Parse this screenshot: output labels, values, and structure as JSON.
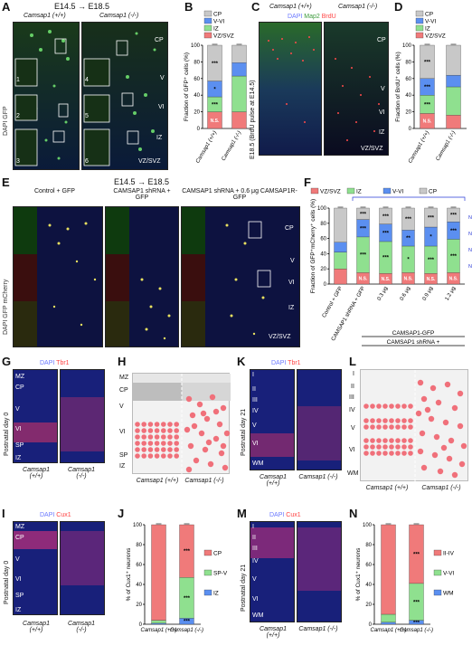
{
  "panels": {
    "A": {
      "label": "A",
      "timeline": "E14.5 → E18.5",
      "genotypes": [
        "Camsap1 (+/+)",
        "Camsap1 (-/-)"
      ],
      "stain": "DAPI GFP",
      "layers": [
        "CP",
        "V",
        "VI",
        "IZ",
        "VZ/SVZ"
      ],
      "insets": [
        "1",
        "2",
        "3",
        "4",
        "5",
        "6"
      ]
    },
    "B": {
      "label": "B"
    },
    "C": {
      "label": "C",
      "genotypes": [
        "Camsap1 (+/+)",
        "Camsap1 (-/-)"
      ],
      "stain_dapi": "DAPI",
      "stain_map2": "Map2",
      "stain_brdu": "BrdU",
      "side": "E18.5 (BrdU pulse at E14.5)",
      "layers": [
        "CP",
        "V",
        "VI",
        "IZ",
        "VZ/SVZ"
      ]
    },
    "D": {
      "label": "D"
    },
    "E": {
      "label": "E",
      "timeline": "E14.5 → E18.5",
      "groups": [
        "Control + GFP",
        "CAMSAP1 shRNA + GFP",
        "CAMSAP1 shRNA + 0.6 μg CAMSAP1R-GFP"
      ],
      "stain": "DAPI GFP mCherry",
      "layers": [
        "CP",
        "V",
        "VI",
        "IZ",
        "VZ/SVZ"
      ]
    },
    "F": {
      "label": "F",
      "rescue_bracket": "CAMSAP1-GFP",
      "shrna_bracket": "CAMSAP1 shRNA +"
    },
    "G": {
      "label": "G",
      "side": "Postnatal day 0",
      "stain_dapi": "DAPI",
      "stain_marker": "Tbr1",
      "layers": [
        "MZ",
        "CP",
        "V",
        "VI",
        "SP",
        "IZ"
      ],
      "genotypes": [
        "Camsap1 (+/+)",
        "Camsap1 (-/-)"
      ]
    },
    "H": {
      "label": "H",
      "layers": [
        "MZ",
        "CP",
        "V",
        "VI",
        "SP",
        "IZ"
      ],
      "genotypes": [
        "Camsap1 (+/+)",
        "Camsap1 (-/-)"
      ]
    },
    "I": {
      "label": "I",
      "side": "Postnatal day 0",
      "stain_dapi": "DAPI",
      "stain_marker": "Cux1",
      "layers": [
        "MZ",
        "CP",
        "V",
        "VI",
        "SP",
        "IZ"
      ],
      "genotypes": [
        "Camsap1 (+/+)",
        "Camsap1 (-/-)"
      ]
    },
    "J": {
      "label": "J"
    },
    "K": {
      "label": "K",
      "side": "Postnatal day 21",
      "stain_dapi": "DAPI",
      "stain_marker": "Tbr1",
      "layers": [
        "I",
        "II",
        "III",
        "IV",
        "V",
        "VI",
        "WM"
      ],
      "genotypes": [
        "Camsap1 (+/+)",
        "Camsap1 (-/-)"
      ]
    },
    "L": {
      "label": "L",
      "layers": [
        "I",
        "II",
        "III",
        "IV",
        "V",
        "VI",
        "WM"
      ],
      "genotypes": [
        "Camsap1 (+/+)",
        "Camsap1 (-/-)"
      ]
    },
    "M": {
      "label": "M",
      "side": "Postnatal day 21",
      "stain_dapi": "DAPI",
      "stain_marker": "Cux1",
      "layers": [
        "I",
        "II",
        "III",
        "IV",
        "V",
        "VI",
        "WM"
      ],
      "genotypes": [
        "Camsap1 (+/+)",
        "Camsap1 (-/-)"
      ]
    },
    "N": {
      "label": "N"
    }
  },
  "colors": {
    "cp": "#c8c8c8",
    "v_vi": "#5b8ff0",
    "iz": "#8fe08f",
    "vz": "#f07a7a",
    "cell": "#f0707a",
    "dapi": "#1a1f8f",
    "sig_blue": "#2a3bd6"
  },
  "chart_data": [
    {
      "id": "B",
      "type": "bar",
      "stacked": true,
      "ylabel": "Fraction of GFP⁺ cells (%)",
      "ylim": [
        0,
        100
      ],
      "yticks": [
        0,
        20,
        40,
        60,
        80,
        100
      ],
      "categories": [
        "Camsap1 (+/+)",
        "Camsap1 (-/-)"
      ],
      "series": [
        {
          "name": "VZ/SVZ",
          "color": "#f07a7a",
          "values": [
            20,
            20
          ]
        },
        {
          "name": "IZ",
          "color": "#8fe08f",
          "values": [
            18,
            43
          ]
        },
        {
          "name": "V-VI",
          "color": "#5b8ff0",
          "values": [
            19,
            16
          ]
        },
        {
          "name": "CP",
          "color": "#c8c8c8",
          "values": [
            43,
            21
          ]
        }
      ],
      "annotations": [
        [
          "***",
          "*",
          "***",
          "N.S."
        ]
      ]
    },
    {
      "id": "D",
      "type": "bar",
      "stacked": true,
      "ylabel": "Fraction of BrdU⁺ cells (%)",
      "ylim": [
        0,
        100
      ],
      "yticks": [
        0,
        20,
        40,
        60,
        80,
        100
      ],
      "categories": [
        "Camsap1 (+/+)",
        "Camsap1 (-/-)"
      ],
      "series": [
        {
          "name": "VZ/SVZ",
          "color": "#f07a7a",
          "values": [
            18,
            16
          ]
        },
        {
          "name": "IZ",
          "color": "#8fe08f",
          "values": [
            22,
            34
          ]
        },
        {
          "name": "V-VI",
          "color": "#5b8ff0",
          "values": [
            20,
            14
          ]
        },
        {
          "name": "CP",
          "color": "#c8c8c8",
          "values": [
            40,
            36
          ]
        }
      ],
      "annotations": [
        [
          "***",
          "***",
          "***",
          "N.S."
        ]
      ]
    },
    {
      "id": "F",
      "type": "bar",
      "stacked": true,
      "ylabel": "Fraction of GFP⁺mCherry⁺ cells (%)",
      "ylim": [
        0,
        100
      ],
      "yticks": [
        0,
        20,
        40,
        60,
        80,
        100
      ],
      "categories": [
        "Control + GFP",
        "CAMSAP1 shRNA + GFP",
        "0.3 μg",
        "0.6 μg",
        "0.9 μg",
        "1.2 μg"
      ],
      "series": [
        {
          "name": "VZ/SVZ",
          "color": "#f07a7a",
          "values": [
            20,
            15,
            14,
            15,
            14,
            15
          ]
        },
        {
          "name": "IZ",
          "color": "#8fe08f",
          "values": [
            22,
            47,
            42,
            35,
            36,
            44
          ]
        },
        {
          "name": "V-VI",
          "color": "#5b8ff0",
          "values": [
            13,
            23,
            23,
            21,
            25,
            23
          ]
        },
        {
          "name": "CP",
          "color": "#c8c8c8",
          "values": [
            45,
            15,
            21,
            29,
            25,
            18
          ]
        }
      ],
      "legend": [
        "VZ/SVZ",
        "IZ",
        "V-VI",
        "CP"
      ],
      "annotations": [
        [],
        [
          "***",
          "***",
          "***",
          "N.S."
        ],
        [
          "***",
          "***",
          "***",
          "N.S."
        ],
        [
          "***",
          "**",
          "*",
          "N.S."
        ],
        [
          "***",
          "*",
          "***",
          "N.S."
        ],
        [
          "***",
          "***",
          "***",
          "N.S."
        ]
      ],
      "side_annotations": [
        "N.S.",
        "N.S.",
        "N.S.",
        "N.S."
      ]
    },
    {
      "id": "J",
      "type": "bar",
      "stacked": true,
      "ylabel": "% of Cux1⁺ neurons",
      "ylim": [
        0,
        100
      ],
      "yticks": [
        0,
        20,
        40,
        60,
        80,
        100
      ],
      "categories": [
        "Camsap1 (+/+)",
        "Camsap1 (-/-)"
      ],
      "series": [
        {
          "name": "IZ",
          "color": "#5b8ff0",
          "values": [
            1,
            6
          ]
        },
        {
          "name": "SP-V",
          "color": "#8fe08f",
          "values": [
            3,
            41
          ]
        },
        {
          "name": "CP",
          "color": "#f07a7a",
          "values": [
            96,
            53
          ]
        }
      ],
      "legend": [
        "CP",
        "SP-V",
        "IZ"
      ],
      "annotations": [
        [],
        [
          "***",
          "***",
          "***"
        ]
      ]
    },
    {
      "id": "N",
      "type": "bar",
      "stacked": true,
      "ylabel": "% of Cux1⁺ neurons",
      "ylim": [
        0,
        100
      ],
      "yticks": [
        0,
        20,
        40,
        60,
        80,
        100
      ],
      "categories": [
        "Camsap1 (+/+)",
        "Camsap1 (-/-)"
      ],
      "series": [
        {
          "name": "WM",
          "color": "#5b8ff0",
          "values": [
            2,
            4
          ]
        },
        {
          "name": "V-VI",
          "color": "#8fe08f",
          "values": [
            8,
            37
          ]
        },
        {
          "name": "II-IV",
          "color": "#f07a7a",
          "values": [
            90,
            59
          ]
        }
      ],
      "legend": [
        "II-IV",
        "V-VI",
        "WM"
      ],
      "annotations": [
        [],
        [
          "***",
          "***",
          "***"
        ]
      ]
    }
  ]
}
